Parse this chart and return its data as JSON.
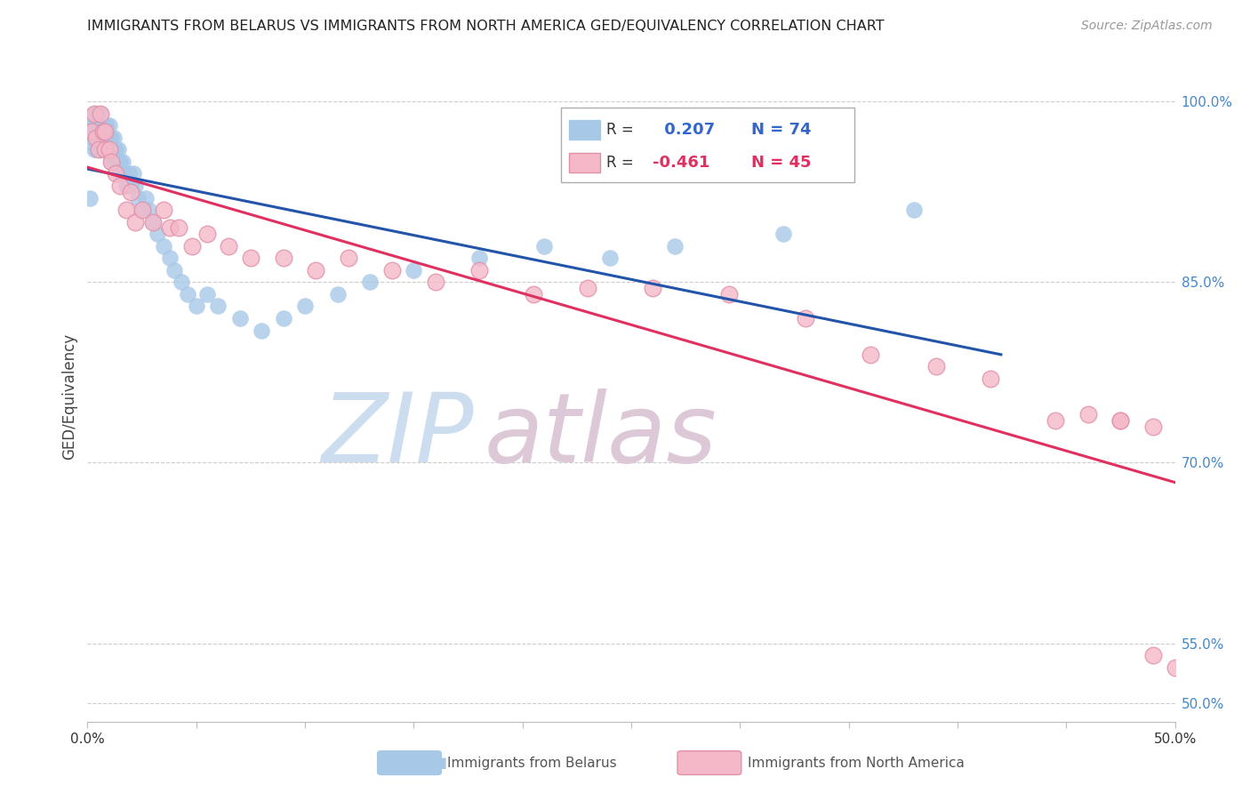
{
  "title": "IMMIGRANTS FROM BELARUS VS IMMIGRANTS FROM NORTH AMERICA GED/EQUIVALENCY CORRELATION CHART",
  "source": "Source: ZipAtlas.com",
  "ylabel": "GED/Equivalency",
  "ytick_values": [
    1.0,
    0.85,
    0.7,
    0.55,
    0.5
  ],
  "xlim": [
    0.0,
    0.5
  ],
  "ylim": [
    0.485,
    1.025
  ],
  "r_belarus": 0.207,
  "n_belarus": 74,
  "r_north_america": -0.461,
  "n_north_america": 45,
  "color_belarus": "#a8c8e8",
  "color_north_america": "#f5b8c8",
  "line_color_belarus": "#2255aa",
  "line_color_north_america": "#e03060",
  "belarus_x": [
    0.001,
    0.002,
    0.002,
    0.003,
    0.003,
    0.003,
    0.004,
    0.004,
    0.004,
    0.004,
    0.005,
    0.005,
    0.005,
    0.005,
    0.006,
    0.006,
    0.006,
    0.006,
    0.007,
    0.007,
    0.007,
    0.008,
    0.008,
    0.008,
    0.009,
    0.009,
    0.01,
    0.01,
    0.01,
    0.011,
    0.011,
    0.011,
    0.012,
    0.012,
    0.013,
    0.013,
    0.014,
    0.014,
    0.015,
    0.015,
    0.016,
    0.017,
    0.018,
    0.019,
    0.02,
    0.021,
    0.022,
    0.023,
    0.025,
    0.027,
    0.028,
    0.03,
    0.032,
    0.035,
    0.038,
    0.04,
    0.043,
    0.046,
    0.05,
    0.055,
    0.06,
    0.07,
    0.08,
    0.09,
    0.1,
    0.115,
    0.13,
    0.15,
    0.18,
    0.21,
    0.24,
    0.27,
    0.32,
    0.38
  ],
  "belarus_y": [
    0.92,
    0.97,
    0.98,
    0.96,
    0.98,
    0.99,
    0.97,
    0.98,
    0.96,
    0.99,
    0.97,
    0.98,
    0.96,
    0.99,
    0.97,
    0.98,
    0.96,
    0.99,
    0.98,
    0.97,
    0.96,
    0.98,
    0.97,
    0.96,
    0.98,
    0.97,
    0.98,
    0.97,
    0.96,
    0.97,
    0.96,
    0.95,
    0.96,
    0.97,
    0.95,
    0.96,
    0.95,
    0.96,
    0.95,
    0.94,
    0.95,
    0.94,
    0.93,
    0.94,
    0.93,
    0.94,
    0.93,
    0.92,
    0.91,
    0.92,
    0.91,
    0.9,
    0.89,
    0.88,
    0.87,
    0.86,
    0.85,
    0.84,
    0.83,
    0.84,
    0.83,
    0.82,
    0.81,
    0.82,
    0.83,
    0.84,
    0.85,
    0.86,
    0.87,
    0.88,
    0.87,
    0.88,
    0.89,
    0.91
  ],
  "north_america_x": [
    0.002,
    0.003,
    0.004,
    0.005,
    0.006,
    0.007,
    0.008,
    0.008,
    0.01,
    0.011,
    0.013,
    0.015,
    0.018,
    0.02,
    0.022,
    0.025,
    0.03,
    0.035,
    0.038,
    0.042,
    0.048,
    0.055,
    0.065,
    0.075,
    0.09,
    0.105,
    0.12,
    0.14,
    0.16,
    0.18,
    0.205,
    0.23,
    0.26,
    0.295,
    0.33,
    0.36,
    0.39,
    0.415,
    0.445,
    0.46,
    0.475,
    0.49,
    0.5,
    0.49,
    0.475
  ],
  "north_america_y": [
    0.975,
    0.99,
    0.97,
    0.96,
    0.99,
    0.975,
    0.96,
    0.975,
    0.96,
    0.95,
    0.94,
    0.93,
    0.91,
    0.925,
    0.9,
    0.91,
    0.9,
    0.91,
    0.895,
    0.895,
    0.88,
    0.89,
    0.88,
    0.87,
    0.87,
    0.86,
    0.87,
    0.86,
    0.85,
    0.86,
    0.84,
    0.845,
    0.845,
    0.84,
    0.82,
    0.79,
    0.78,
    0.77,
    0.735,
    0.74,
    0.735,
    0.54,
    0.53,
    0.73,
    0.735
  ]
}
